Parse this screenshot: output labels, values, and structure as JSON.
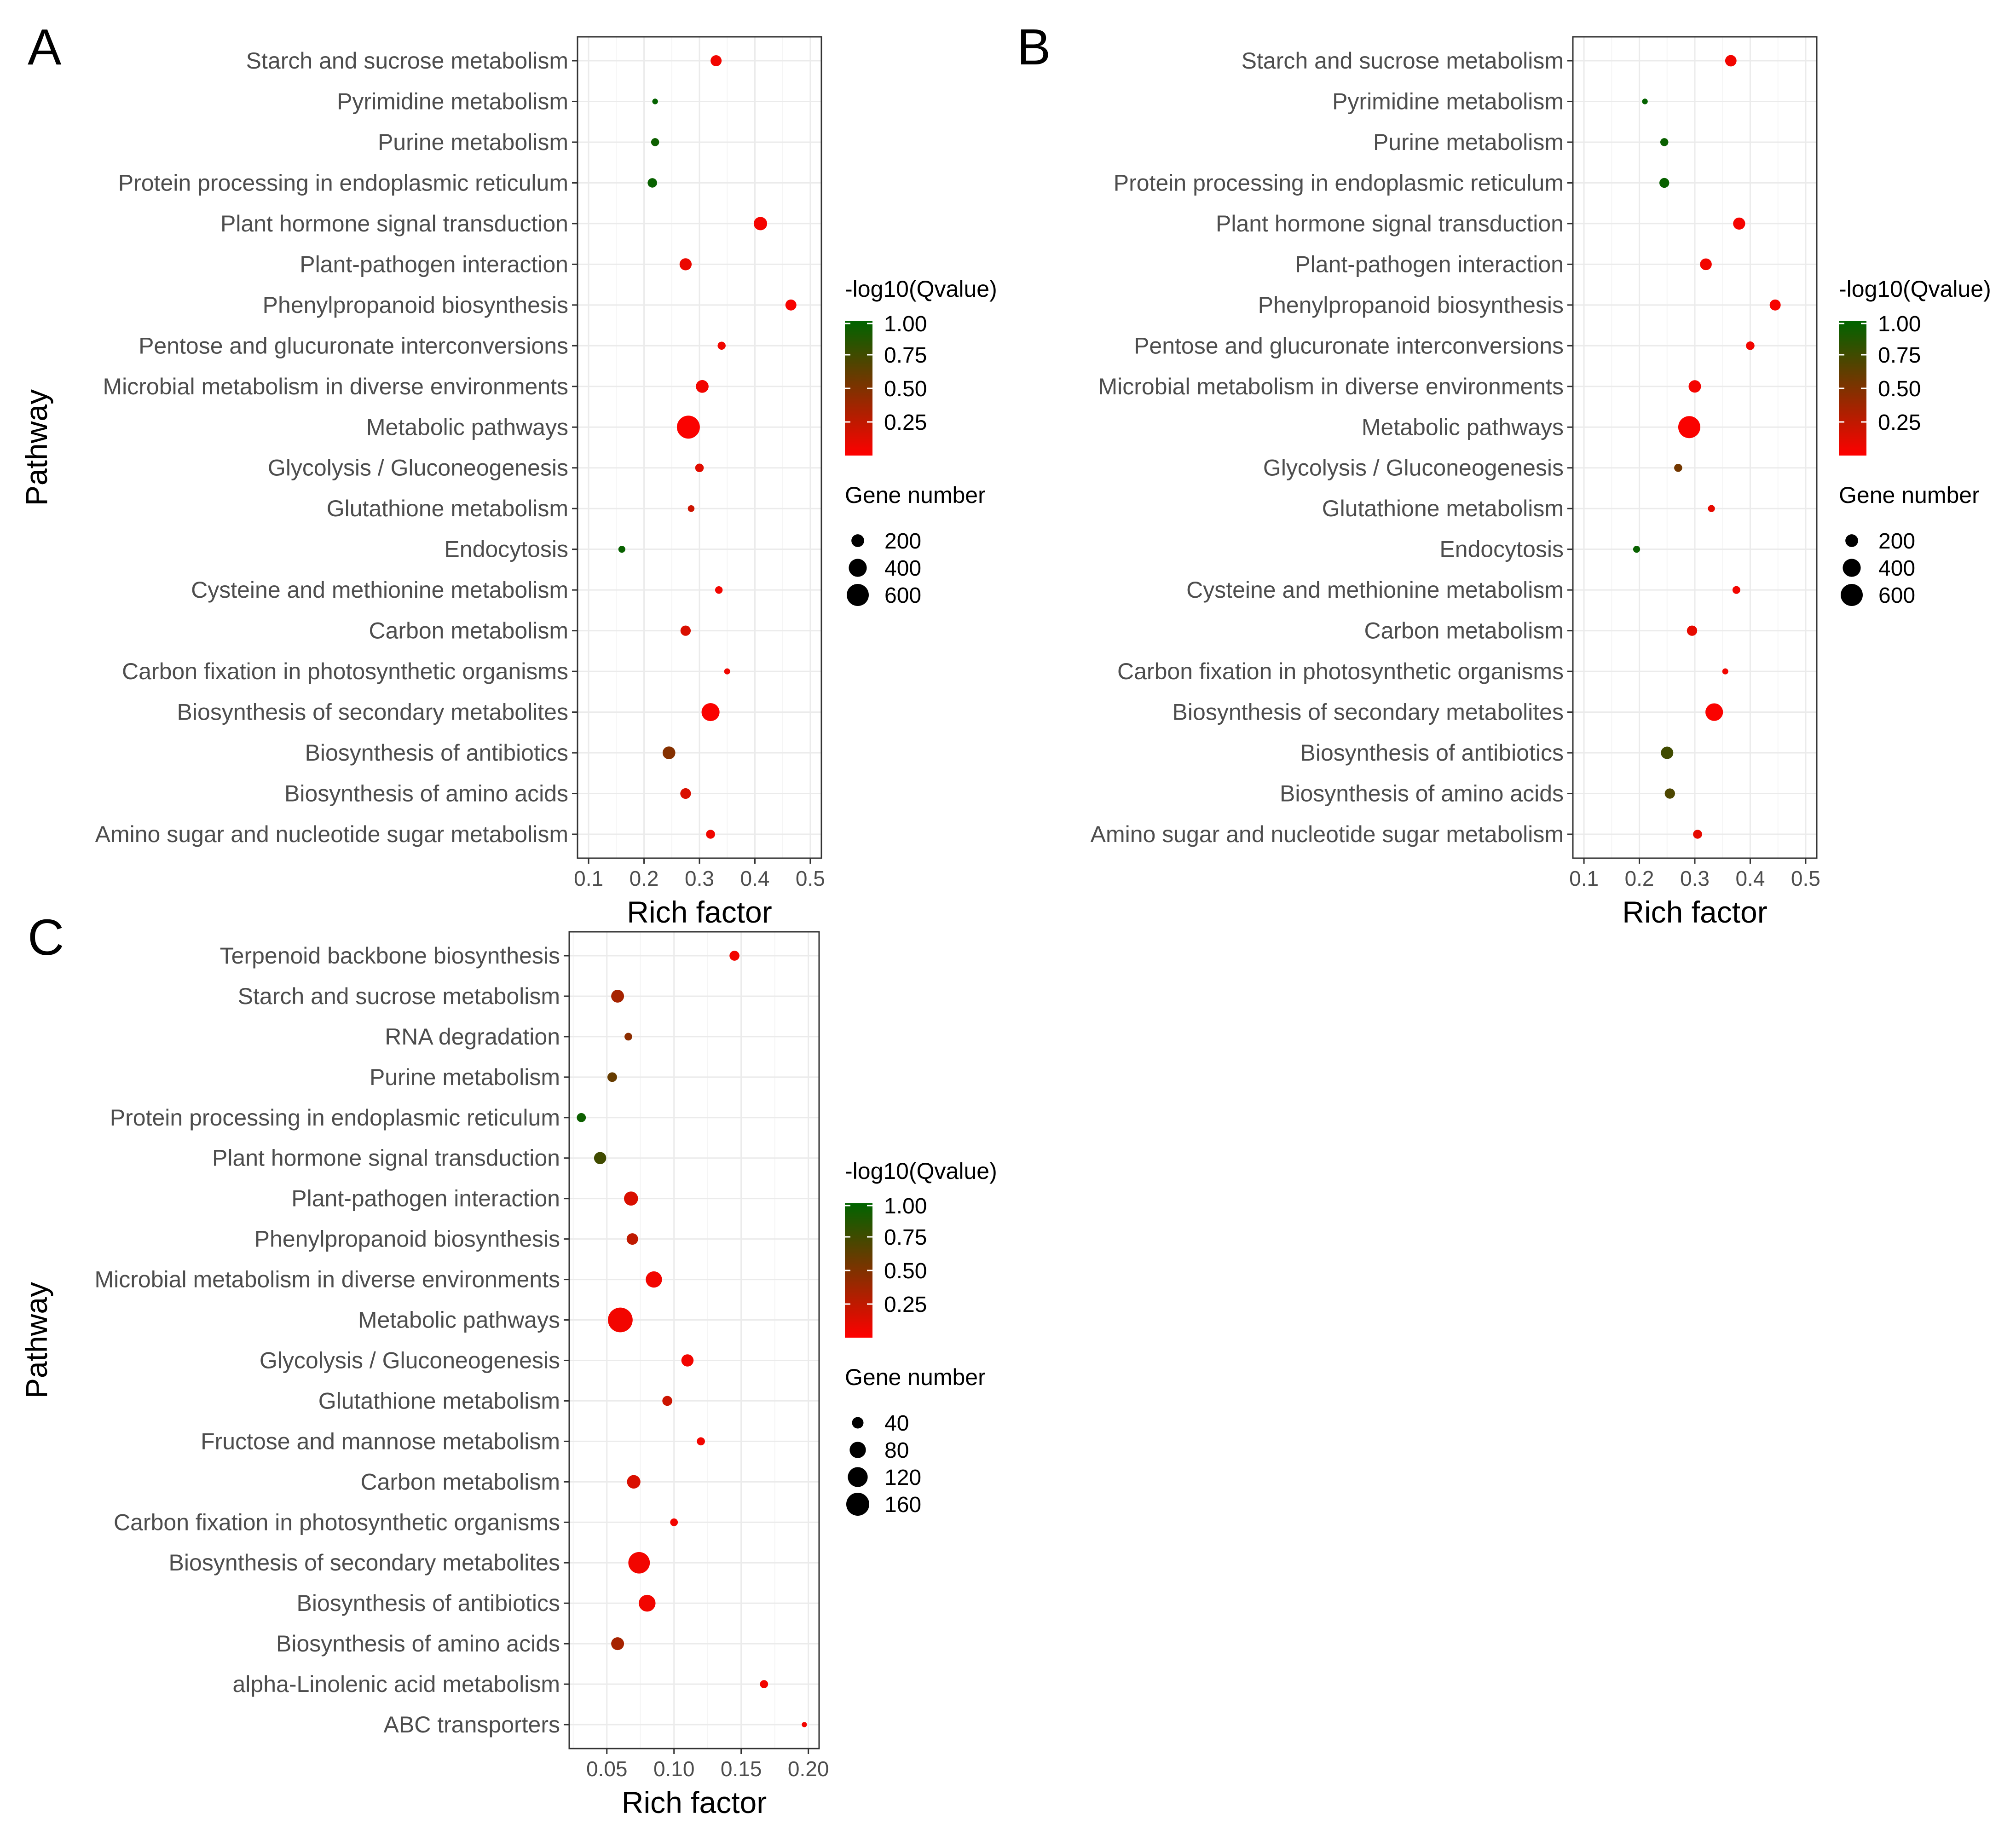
{
  "chart_data": [
    {
      "panel": "A",
      "type": "scatter",
      "xlabel": "Rich factor",
      "ylabel": "Pathway",
      "xlim": [
        0.08,
        0.52
      ],
      "xticks": [
        "0.1",
        "0.2",
        "0.3",
        "0.4",
        "0.5"
      ],
      "xtick_values": [
        0.1,
        0.2,
        0.3,
        0.4,
        0.5
      ],
      "grid": true,
      "color_legend": {
        "title": "-log10(Qvalue)",
        "ticks": [
          "1.00",
          "0.75",
          "0.50",
          "0.25"
        ],
        "tick_values": [
          1.0,
          0.75,
          0.5,
          0.25
        ],
        "range": [
          0.0,
          1.0
        ],
        "low_color": "#ff0000",
        "high_color": "#006400"
      },
      "size_legend": {
        "title": "Gene number",
        "labels": [
          "200",
          "400",
          "600"
        ],
        "values": [
          200,
          400,
          600
        ]
      },
      "points": [
        {
          "pathway": "Starch and sucrose metabolism",
          "x": 0.33,
          "genes": 150,
          "q": 0.05
        },
        {
          "pathway": "Pyrimidine metabolism",
          "x": 0.22,
          "genes": 40,
          "q": 0.98
        },
        {
          "pathway": "Purine metabolism",
          "x": 0.22,
          "genes": 80,
          "q": 0.95
        },
        {
          "pathway": "Protein processing in endoplasmic reticulum",
          "x": 0.215,
          "genes": 110,
          "q": 0.97
        },
        {
          "pathway": "Plant hormone signal transduction",
          "x": 0.41,
          "genes": 220,
          "q": 0.04
        },
        {
          "pathway": "Plant-pathogen interaction",
          "x": 0.275,
          "genes": 180,
          "q": 0.08
        },
        {
          "pathway": "Phenylpropanoid biosynthesis",
          "x": 0.465,
          "genes": 150,
          "q": 0.03
        },
        {
          "pathway": "Pentose and glucuronate interconversions",
          "x": 0.34,
          "genes": 80,
          "q": 0.06
        },
        {
          "pathway": "Microbial metabolism in diverse environments",
          "x": 0.305,
          "genes": 200,
          "q": 0.05
        },
        {
          "pathway": "Metabolic pathways",
          "x": 0.28,
          "genes": 650,
          "q": 0.02
        },
        {
          "pathway": "Glycolysis / Gluconeogenesis",
          "x": 0.3,
          "genes": 90,
          "q": 0.12
        },
        {
          "pathway": "Glutathione metabolism",
          "x": 0.285,
          "genes": 55,
          "q": 0.2
        },
        {
          "pathway": "Endocytosis",
          "x": 0.16,
          "genes": 60,
          "q": 0.97
        },
        {
          "pathway": "Cysteine and methionine metabolism",
          "x": 0.335,
          "genes": 70,
          "q": 0.05
        },
        {
          "pathway": "Carbon metabolism",
          "x": 0.275,
          "genes": 130,
          "q": 0.15
        },
        {
          "pathway": "Carbon fixation in photosynthetic organisms",
          "x": 0.35,
          "genes": 45,
          "q": 0.06
        },
        {
          "pathway": "Biosynthesis of secondary metabolites",
          "x": 0.32,
          "genes": 400,
          "q": 0.02
        },
        {
          "pathway": "Biosynthesis of antibiotics",
          "x": 0.245,
          "genes": 200,
          "q": 0.48
        },
        {
          "pathway": "Biosynthesis of amino acids",
          "x": 0.275,
          "genes": 140,
          "q": 0.15
        },
        {
          "pathway": "Amino sugar and nucleotide sugar metabolism",
          "x": 0.32,
          "genes": 100,
          "q": 0.06
        }
      ]
    },
    {
      "panel": "B",
      "type": "scatter",
      "xlabel": "Rich factor",
      "ylabel": "Pathway",
      "xlim": [
        0.08,
        0.52
      ],
      "xticks": [
        "0.1",
        "0.2",
        "0.3",
        "0.4",
        "0.5"
      ],
      "xtick_values": [
        0.1,
        0.2,
        0.3,
        0.4,
        0.5
      ],
      "grid": true,
      "color_legend": {
        "title": "-log10(Qvalue)",
        "ticks": [
          "1.00",
          "0.75",
          "0.50",
          "0.25"
        ],
        "tick_values": [
          1.0,
          0.75,
          0.5,
          0.25
        ],
        "range": [
          0.0,
          1.0
        ],
        "low_color": "#ff0000",
        "high_color": "#006400"
      },
      "size_legend": {
        "title": "Gene number",
        "labels": [
          "200",
          "400",
          "600"
        ],
        "values": [
          200,
          400,
          600
        ]
      },
      "points": [
        {
          "pathway": "Starch and sucrose metabolism",
          "x": 0.365,
          "genes": 160,
          "q": 0.05
        },
        {
          "pathway": "Pyrimidine metabolism",
          "x": 0.21,
          "genes": 40,
          "q": 0.98
        },
        {
          "pathway": "Purine metabolism",
          "x": 0.245,
          "genes": 80,
          "q": 0.96
        },
        {
          "pathway": "Protein processing in endoplasmic reticulum",
          "x": 0.245,
          "genes": 120,
          "q": 0.97
        },
        {
          "pathway": "Plant hormone signal transduction",
          "x": 0.38,
          "genes": 180,
          "q": 0.04
        },
        {
          "pathway": "Plant-pathogen interaction",
          "x": 0.32,
          "genes": 170,
          "q": 0.05
        },
        {
          "pathway": "Phenylpropanoid biosynthesis",
          "x": 0.445,
          "genes": 150,
          "q": 0.03
        },
        {
          "pathway": "Pentose and glucuronate interconversions",
          "x": 0.4,
          "genes": 90,
          "q": 0.05
        },
        {
          "pathway": "Microbial metabolism in diverse environments",
          "x": 0.3,
          "genes": 190,
          "q": 0.04
        },
        {
          "pathway": "Metabolic pathways",
          "x": 0.29,
          "genes": 600,
          "q": 0.02
        },
        {
          "pathway": "Glycolysis / Gluconeogenesis",
          "x": 0.27,
          "genes": 80,
          "q": 0.55
        },
        {
          "pathway": "Glutathione metabolism",
          "x": 0.33,
          "genes": 60,
          "q": 0.1
        },
        {
          "pathway": "Endocytosis",
          "x": 0.195,
          "genes": 60,
          "q": 0.97
        },
        {
          "pathway": "Cysteine and methionine metabolism",
          "x": 0.375,
          "genes": 75,
          "q": 0.05
        },
        {
          "pathway": "Carbon metabolism",
          "x": 0.295,
          "genes": 130,
          "q": 0.1
        },
        {
          "pathway": "Carbon fixation in photosynthetic organisms",
          "x": 0.355,
          "genes": 45,
          "q": 0.05
        },
        {
          "pathway": "Biosynthesis of secondary metabolites",
          "x": 0.335,
          "genes": 380,
          "q": 0.02
        },
        {
          "pathway": "Biosynthesis of antibiotics",
          "x": 0.25,
          "genes": 190,
          "q": 0.75
        },
        {
          "pathway": "Biosynthesis of amino acids",
          "x": 0.255,
          "genes": 130,
          "q": 0.7
        },
        {
          "pathway": "Amino sugar and nucleotide sugar metabolism",
          "x": 0.305,
          "genes": 100,
          "q": 0.1
        }
      ]
    },
    {
      "panel": "C",
      "type": "scatter",
      "xlabel": "Rich factor",
      "ylabel": "Pathway",
      "xlim": [
        0.022,
        0.208
      ],
      "xticks": [
        "0.05",
        "0.10",
        "0.15",
        "0.20"
      ],
      "xtick_values": [
        0.05,
        0.1,
        0.15,
        0.2
      ],
      "grid": true,
      "color_legend": {
        "title": "-log10(Qvalue)",
        "ticks": [
          "1.00",
          "0.75",
          "0.50",
          "0.25"
        ],
        "tick_values": [
          1.0,
          0.75,
          0.5,
          0.25
        ],
        "range": [
          0.0,
          1.0
        ],
        "low_color": "#ff0000",
        "high_color": "#006400"
      },
      "size_legend": {
        "title": "Gene number",
        "labels": [
          "40",
          "80",
          "120",
          "160"
        ],
        "values": [
          40,
          80,
          120,
          160
        ]
      },
      "points": [
        {
          "pathway": "Terpenoid backbone biosynthesis",
          "x": 0.145,
          "genes": 30,
          "q": 0.05
        },
        {
          "pathway": "Starch and sucrose metabolism",
          "x": 0.058,
          "genes": 50,
          "q": 0.35
        },
        {
          "pathway": "RNA degradation",
          "x": 0.066,
          "genes": 18,
          "q": 0.45
        },
        {
          "pathway": "Purine metabolism",
          "x": 0.054,
          "genes": 28,
          "q": 0.6
        },
        {
          "pathway": "Protein processing in endoplasmic reticulum",
          "x": 0.031,
          "genes": 25,
          "q": 0.95
        },
        {
          "pathway": "Plant hormone signal transduction",
          "x": 0.045,
          "genes": 45,
          "q": 0.75
        },
        {
          "pathway": "Plant-pathogen interaction",
          "x": 0.068,
          "genes": 60,
          "q": 0.15
        },
        {
          "pathway": "Phenylpropanoid biosynthesis",
          "x": 0.069,
          "genes": 40,
          "q": 0.25
        },
        {
          "pathway": "Microbial metabolism in diverse environments",
          "x": 0.085,
          "genes": 80,
          "q": 0.05
        },
        {
          "pathway": "Metabolic pathways",
          "x": 0.06,
          "genes": 185,
          "q": 0.05
        },
        {
          "pathway": "Glycolysis / Gluconeogenesis",
          "x": 0.11,
          "genes": 45,
          "q": 0.05
        },
        {
          "pathway": "Glutathione metabolism",
          "x": 0.095,
          "genes": 30,
          "q": 0.2
        },
        {
          "pathway": "Fructose and mannose metabolism",
          "x": 0.12,
          "genes": 20,
          "q": 0.05
        },
        {
          "pathway": "Carbon metabolism",
          "x": 0.07,
          "genes": 55,
          "q": 0.15
        },
        {
          "pathway": "Carbon fixation in photosynthetic organisms",
          "x": 0.1,
          "genes": 18,
          "q": 0.05
        },
        {
          "pathway": "Biosynthesis of secondary metabolites",
          "x": 0.074,
          "genes": 140,
          "q": 0.05
        },
        {
          "pathway": "Biosynthesis of antibiotics",
          "x": 0.08,
          "genes": 85,
          "q": 0.05
        },
        {
          "pathway": "Biosynthesis of amino acids",
          "x": 0.058,
          "genes": 50,
          "q": 0.35
        },
        {
          "pathway": "alpha-Linolenic acid metabolism",
          "x": 0.167,
          "genes": 20,
          "q": 0.05
        },
        {
          "pathway": "ABC transporters",
          "x": 0.197,
          "genes": 8,
          "q": 0.05
        }
      ]
    }
  ]
}
